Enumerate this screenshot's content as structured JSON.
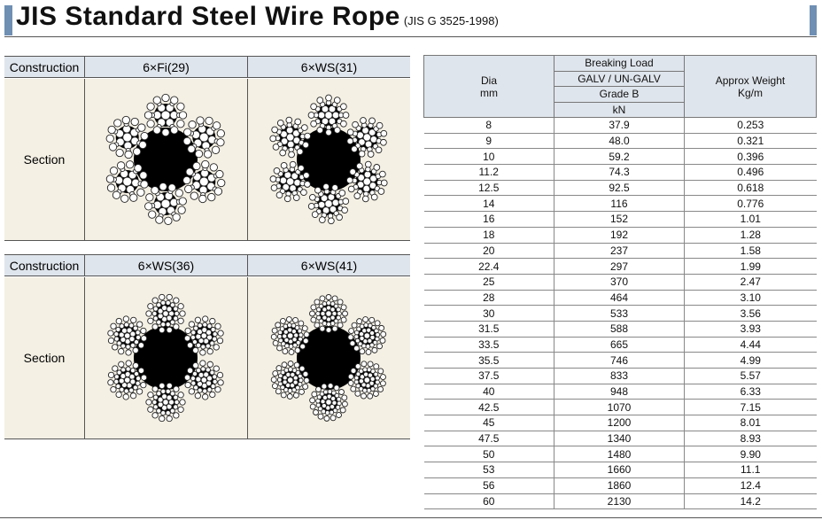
{
  "header": {
    "title": "JIS Standard Steel Wire Rope",
    "subtitle": "(JIS G 3525-1998)"
  },
  "panels": [
    {
      "construction": "Construction",
      "section": "Section",
      "types": [
        "6×Fi(29)",
        "6×WS(31)"
      ]
    },
    {
      "construction": "Construction",
      "section": "Section",
      "types": [
        "6×WS(36)",
        "6×WS(41)"
      ]
    }
  ],
  "table": {
    "headers": {
      "dia": "Dia",
      "dia_unit": "mm",
      "breaking_load": "Breaking Load",
      "galv": "GALV / UN-GALV",
      "grade": "Grade B",
      "load_unit": "kN",
      "weight": "Approx Weight",
      "weight_unit": "Kg/m"
    },
    "rows": [
      [
        "8",
        "37.9",
        "0.253"
      ],
      [
        "9",
        "48.0",
        "0.321"
      ],
      [
        "10",
        "59.2",
        "0.396"
      ],
      [
        "11.2",
        "74.3",
        "0.496"
      ],
      [
        "12.5",
        "92.5",
        "0.618"
      ],
      [
        "14",
        "116",
        "0.776"
      ],
      [
        "16",
        "152",
        "1.01"
      ],
      [
        "18",
        "192",
        "1.28"
      ],
      [
        "20",
        "237",
        "1.58"
      ],
      [
        "22.4",
        "297",
        "1.99"
      ],
      [
        "25",
        "370",
        "2.47"
      ],
      [
        "28",
        "464",
        "3.10"
      ],
      [
        "30",
        "533",
        "3.56"
      ],
      [
        "31.5",
        "588",
        "3.93"
      ],
      [
        "33.5",
        "665",
        "4.44"
      ],
      [
        "35.5",
        "746",
        "4.99"
      ],
      [
        "37.5",
        "833",
        "5.57"
      ],
      [
        "40",
        "948",
        "6.33"
      ],
      [
        "42.5",
        "1070",
        "7.15"
      ],
      [
        "45",
        "1200",
        "8.01"
      ],
      [
        "47.5",
        "1340",
        "8.93"
      ],
      [
        "50",
        "1480",
        "9.90"
      ],
      [
        "53",
        "1660",
        "11.1"
      ],
      [
        "56",
        "1860",
        "12.4"
      ],
      [
        "60",
        "2130",
        "14.2"
      ]
    ]
  }
}
